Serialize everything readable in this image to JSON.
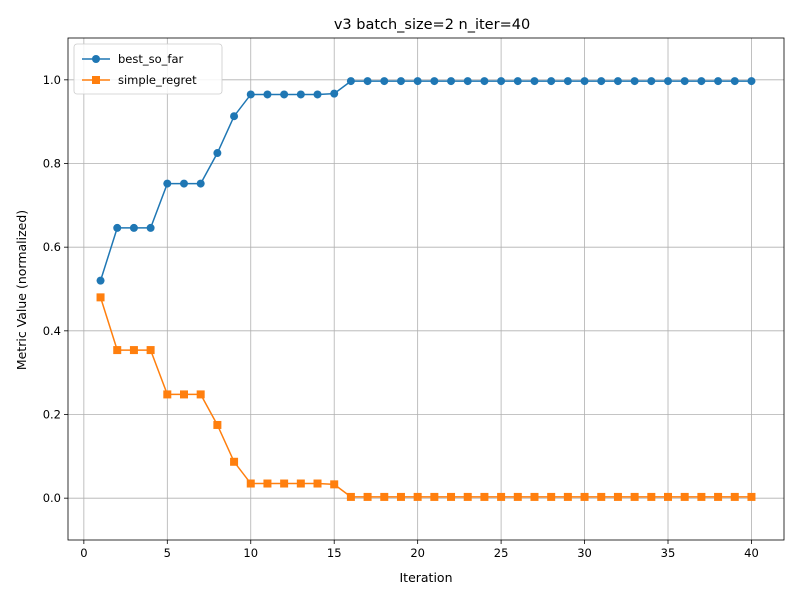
{
  "chart_data": {
    "type": "line",
    "title": "v3 batch_size=2 n_iter=40",
    "xlabel": "Iteration",
    "ylabel": "Metric Value (normalized)",
    "xlim": [
      -0.95,
      41.95
    ],
    "ylim": [
      -0.1,
      1.1
    ],
    "xticks": [
      0,
      5,
      10,
      15,
      20,
      25,
      30,
      35,
      40
    ],
    "yticks": [
      0.0,
      0.2,
      0.4,
      0.6,
      0.8,
      1.0
    ],
    "xtick_labels": [
      "0",
      "5",
      "10",
      "15",
      "20",
      "25",
      "30",
      "35",
      "40"
    ],
    "ytick_labels": [
      "0.0",
      "0.2",
      "0.4",
      "0.6",
      "0.8",
      "1.0"
    ],
    "grid": true,
    "legend_position": "upper-left",
    "x": [
      1,
      2,
      3,
      4,
      5,
      6,
      7,
      8,
      9,
      10,
      11,
      12,
      13,
      14,
      15,
      16,
      17,
      18,
      19,
      20,
      21,
      22,
      23,
      24,
      25,
      26,
      27,
      28,
      29,
      30,
      31,
      32,
      33,
      34,
      35,
      36,
      37,
      38,
      39,
      40
    ],
    "series": [
      {
        "name": "best_so_far",
        "color": "#1f77b4",
        "marker": "circle",
        "values": [
          0.52,
          0.646,
          0.646,
          0.646,
          0.752,
          0.752,
          0.752,
          0.825,
          0.913,
          0.965,
          0.965,
          0.965,
          0.965,
          0.965,
          0.967,
          0.997,
          0.997,
          0.997,
          0.997,
          0.997,
          0.997,
          0.997,
          0.997,
          0.997,
          0.997,
          0.997,
          0.997,
          0.997,
          0.997,
          0.997,
          0.997,
          0.997,
          0.997,
          0.997,
          0.997,
          0.997,
          0.997,
          0.997,
          0.997,
          0.997
        ]
      },
      {
        "name": "simple_regret",
        "color": "#ff7f0e",
        "marker": "square",
        "values": [
          0.48,
          0.354,
          0.354,
          0.354,
          0.248,
          0.248,
          0.248,
          0.175,
          0.087,
          0.035,
          0.035,
          0.035,
          0.035,
          0.035,
          0.033,
          0.003,
          0.003,
          0.003,
          0.003,
          0.003,
          0.003,
          0.003,
          0.003,
          0.003,
          0.003,
          0.003,
          0.003,
          0.003,
          0.003,
          0.003,
          0.003,
          0.003,
          0.003,
          0.003,
          0.003,
          0.003,
          0.003,
          0.003,
          0.003,
          0.003
        ]
      }
    ]
  }
}
